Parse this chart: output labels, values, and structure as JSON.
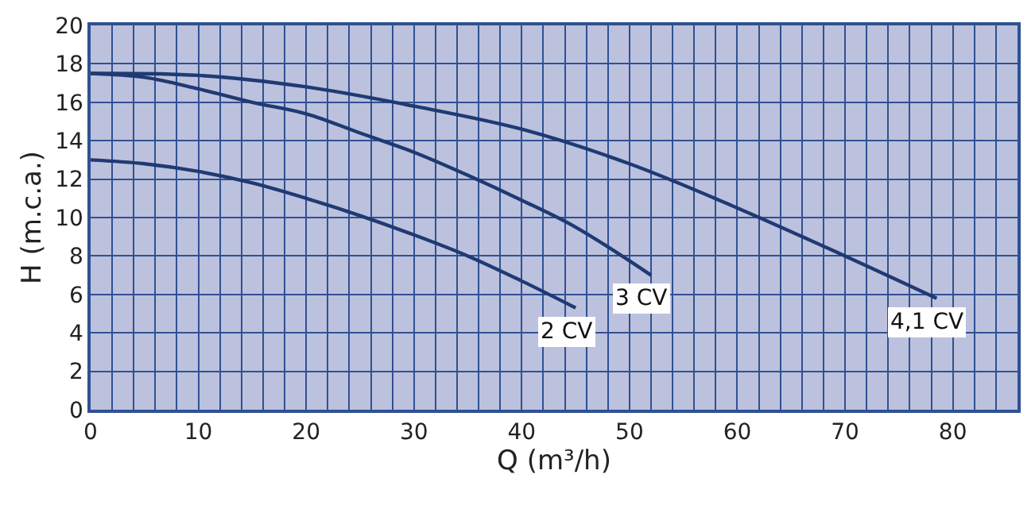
{
  "chart_data": {
    "type": "line",
    "xlabel": "Q (m³/h)",
    "ylabel": "H (m.c.a.)",
    "xlim": [
      0,
      86
    ],
    "ylim": [
      0,
      20
    ],
    "xticks": [
      0,
      {
        "value": 2,
        "label": null
      },
      {
        "value": 4,
        "label": null
      },
      {
        "value": 6,
        "label": null
      },
      {
        "value": 8,
        "label": null
      },
      10,
      {
        "value": 12,
        "label": null
      },
      {
        "value": 14,
        "label": null
      },
      {
        "value": 16,
        "label": null
      },
      {
        "value": 18,
        "label": null
      },
      20,
      {
        "value": 22,
        "label": null
      },
      {
        "value": 24,
        "label": null
      },
      {
        "value": 26,
        "label": null
      },
      {
        "value": 28,
        "label": null
      },
      30,
      {
        "value": 32,
        "label": null
      },
      {
        "value": 34,
        "label": null
      },
      {
        "value": 36,
        "label": null
      },
      {
        "value": 38,
        "label": null
      },
      40,
      {
        "value": 42,
        "label": null
      },
      {
        "value": 44,
        "label": null
      },
      {
        "value": 46,
        "label": null
      },
      {
        "value": 48,
        "label": null
      },
      50,
      {
        "value": 52,
        "label": null
      },
      {
        "value": 54,
        "label": null
      },
      {
        "value": 56,
        "label": null
      },
      {
        "value": 58,
        "label": null
      },
      60,
      {
        "value": 62,
        "label": null
      },
      {
        "value": 64,
        "label": null
      },
      {
        "value": 66,
        "label": null
      },
      {
        "value": 68,
        "label": null
      },
      70,
      {
        "value": 72,
        "label": null
      },
      {
        "value": 74,
        "label": null
      },
      {
        "value": 76,
        "label": null
      },
      {
        "value": 78,
        "label": null
      },
      80,
      {
        "value": 82,
        "label": null
      },
      {
        "value": 84,
        "label": null
      },
      {
        "value": 86,
        "label": null
      }
    ],
    "yticks": [
      0,
      2,
      4,
      6,
      8,
      10,
      12,
      14,
      16,
      18,
      20
    ],
    "grid": true,
    "legend": false,
    "marker": "none",
    "line_style": "solid",
    "series": [
      {
        "name": "2 CV",
        "color": "#1f3a73",
        "x": [
          0,
          5,
          10,
          15,
          20,
          25,
          30,
          35,
          40,
          45
        ],
        "values": [
          13.0,
          12.8,
          12.4,
          11.8,
          11.0,
          10.1,
          9.1,
          8.0,
          6.7,
          5.3
        ]
      },
      {
        "name": "3 CV",
        "color": "#1f3a73",
        "x": [
          0,
          5,
          10,
          15,
          20,
          25,
          30,
          35,
          40,
          45,
          52
        ],
        "values": [
          17.5,
          17.3,
          16.7,
          16.0,
          15.4,
          14.4,
          13.4,
          12.2,
          10.9,
          9.5,
          7.0
        ]
      },
      {
        "name": "4,1 CV",
        "color": "#1f3a73",
        "x": [
          0,
          10,
          20,
          30,
          40,
          50,
          60,
          70,
          78.5
        ],
        "values": [
          17.5,
          17.4,
          16.8,
          15.8,
          14.6,
          12.8,
          10.5,
          8.0,
          5.8
        ]
      }
    ]
  }
}
